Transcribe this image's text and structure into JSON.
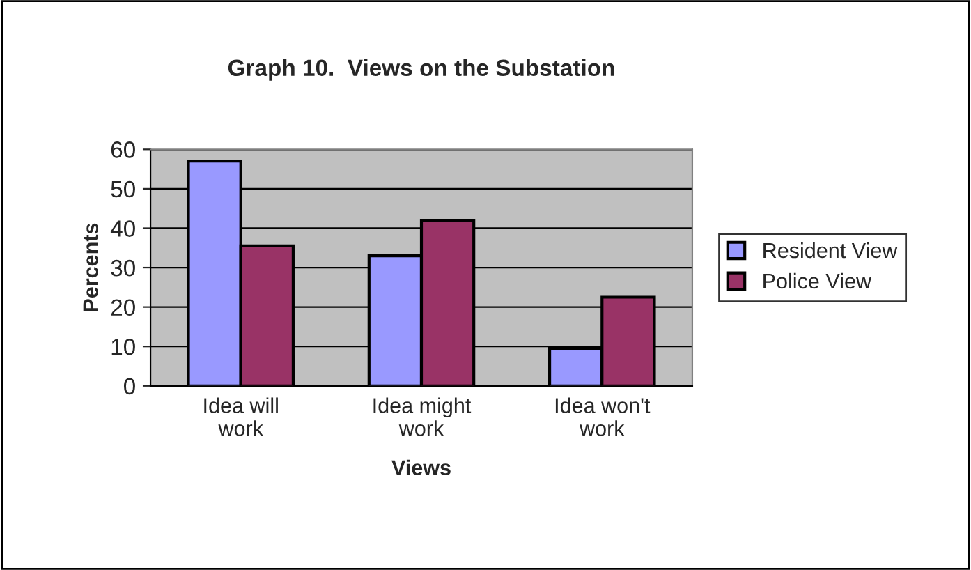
{
  "chart_data": {
    "type": "bar",
    "title": "Graph 10.  Views on the Substation",
    "xlabel": "Views",
    "ylabel": "Percents",
    "categories": [
      "Idea will\nwork",
      "Idea might\nwork",
      "Idea won't\nwork"
    ],
    "series": [
      {
        "name": "Resident View",
        "color": "#9999ff",
        "values": [
          57,
          33,
          9.5
        ]
      },
      {
        "name": "Police View",
        "color": "#993366",
        "values": [
          35.5,
          42,
          22.5
        ]
      }
    ],
    "ylim": [
      0,
      60
    ],
    "yticks": [
      0,
      10,
      20,
      30,
      40,
      50,
      60
    ],
    "grid": "y",
    "legend": "right"
  }
}
